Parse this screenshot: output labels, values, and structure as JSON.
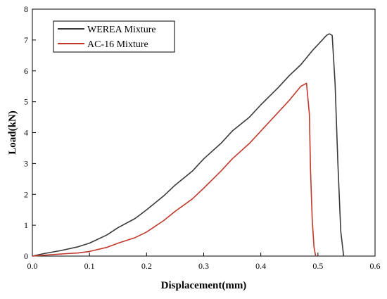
{
  "chart_data": {
    "type": "line",
    "title": "",
    "xlabel": "Displacement(mm)",
    "ylabel": "Load(kN)",
    "xlim": [
      0.0,
      0.6
    ],
    "ylim": [
      0,
      8
    ],
    "x_ticks": [
      "0.0",
      "0.1",
      "0.2",
      "0.3",
      "0.4",
      "0.5",
      "0.6"
    ],
    "y_ticks": [
      "0",
      "1",
      "2",
      "3",
      "4",
      "5",
      "6",
      "7",
      "8"
    ],
    "grid": false,
    "legend_position": "top-left",
    "series": [
      {
        "name": "WEREA Mixture",
        "color": "#3a3a3a",
        "x": [
          0.0,
          0.02,
          0.05,
          0.08,
          0.1,
          0.13,
          0.15,
          0.18,
          0.2,
          0.23,
          0.25,
          0.28,
          0.3,
          0.33,
          0.35,
          0.38,
          0.4,
          0.43,
          0.45,
          0.47,
          0.49,
          0.5,
          0.51,
          0.515,
          0.52,
          0.525,
          0.53,
          0.535,
          0.54,
          0.545
        ],
        "y": [
          0.0,
          0.08,
          0.18,
          0.3,
          0.42,
          0.68,
          0.92,
          1.22,
          1.5,
          1.95,
          2.3,
          2.75,
          3.15,
          3.65,
          4.05,
          4.5,
          4.9,
          5.45,
          5.85,
          6.2,
          6.65,
          6.85,
          7.05,
          7.15,
          7.2,
          7.15,
          5.6,
          3.0,
          0.8,
          0.0
        ]
      },
      {
        "name": "AC-16 Mixture",
        "color": "#c0392b",
        "x": [
          0.0,
          0.03,
          0.06,
          0.08,
          0.1,
          0.13,
          0.15,
          0.18,
          0.2,
          0.23,
          0.25,
          0.28,
          0.3,
          0.33,
          0.35,
          0.38,
          0.4,
          0.42,
          0.45,
          0.47,
          0.48,
          0.485,
          0.487,
          0.49,
          0.493,
          0.496
        ],
        "y": [
          0.0,
          0.04,
          0.08,
          0.1,
          0.15,
          0.28,
          0.42,
          0.6,
          0.78,
          1.15,
          1.45,
          1.85,
          2.2,
          2.75,
          3.15,
          3.65,
          4.05,
          4.45,
          5.05,
          5.5,
          5.6,
          4.6,
          2.8,
          1.2,
          0.3,
          0.0
        ]
      }
    ]
  }
}
